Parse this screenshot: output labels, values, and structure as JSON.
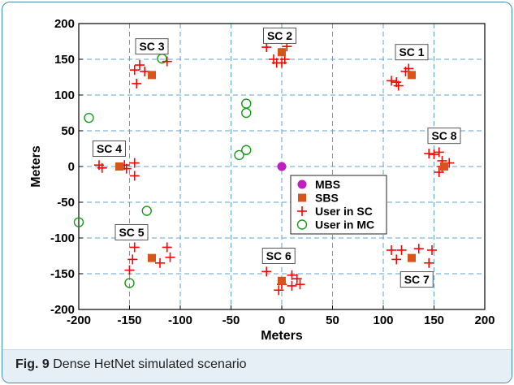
{
  "figure": {
    "label": "Fig. 9",
    "caption": "Dense HetNet simulated scenario"
  },
  "chart_data": {
    "type": "scatter",
    "xlabel": "Meters",
    "ylabel": "Meters",
    "xlim": [
      -200,
      200
    ],
    "ylim": [
      -200,
      200
    ],
    "xticks": [
      -200,
      -150,
      -100,
      -50,
      0,
      50,
      100,
      150,
      200
    ],
    "yticks": [
      -200,
      -150,
      -100,
      -50,
      0,
      50,
      100,
      150,
      200
    ],
    "grid": true,
    "legend_position": "center-right",
    "colors": {
      "MBS": "#bf1fbf",
      "SBS": "#d9541a",
      "User in SC": "#ff0000",
      "User in MC": "#1a9a1a",
      "grid": "#5fa0d0"
    },
    "series": [
      {
        "name": "MBS",
        "marker": "filled-circle",
        "points": [
          [
            0,
            0
          ]
        ]
      },
      {
        "name": "SBS",
        "marker": "filled-square",
        "points": [
          [
            -128,
            128
          ],
          [
            0,
            160
          ],
          [
            128,
            128
          ],
          [
            160,
            0
          ],
          [
            128,
            -128
          ],
          [
            0,
            -160
          ],
          [
            -128,
            -128
          ],
          [
            -160,
            0
          ]
        ]
      },
      {
        "name": "User in SC",
        "marker": "plus",
        "points": [
          [
            -145,
            135
          ],
          [
            -140,
            142
          ],
          [
            -135,
            133
          ],
          [
            -143,
            116
          ],
          [
            -113,
            147
          ],
          [
            -15,
            167
          ],
          [
            -8,
            150
          ],
          [
            -5,
            145
          ],
          [
            0,
            145
          ],
          [
            3,
            150
          ],
          [
            5,
            168
          ],
          [
            108,
            120
          ],
          [
            113,
            118
          ],
          [
            115,
            113
          ],
          [
            122,
            133
          ],
          [
            125,
            137
          ],
          [
            145,
            18
          ],
          [
            150,
            17
          ],
          [
            155,
            20
          ],
          [
            158,
            8
          ],
          [
            158,
            0
          ],
          [
            155,
            -8
          ],
          [
            165,
            5
          ],
          [
            -180,
            2
          ],
          [
            -177,
            -2
          ],
          [
            -155,
            2
          ],
          [
            -153,
            -3
          ],
          [
            -145,
            5
          ],
          [
            -145,
            -13
          ],
          [
            -145,
            -113
          ],
          [
            -147,
            -130
          ],
          [
            -150,
            -145
          ],
          [
            -120,
            -135
          ],
          [
            -113,
            -113
          ],
          [
            -110,
            -127
          ],
          [
            -15,
            -147
          ],
          [
            -3,
            -173
          ],
          [
            0,
            -165
          ],
          [
            10,
            -152
          ],
          [
            10,
            -167
          ],
          [
            15,
            -157
          ],
          [
            18,
            -165
          ],
          [
            108,
            -117
          ],
          [
            113,
            -130
          ],
          [
            118,
            -117
          ],
          [
            135,
            -115
          ],
          [
            145,
            -135
          ],
          [
            148,
            -117
          ]
        ]
      },
      {
        "name": "User in MC",
        "marker": "open-circle",
        "points": [
          [
            -190,
            68
          ],
          [
            -118,
            151
          ],
          [
            -35,
            88
          ],
          [
            -35,
            75
          ],
          [
            -42,
            16
          ],
          [
            -35,
            23
          ],
          [
            -200,
            -78
          ],
          [
            -133,
            -62
          ],
          [
            -150,
            -163
          ]
        ]
      }
    ],
    "annotations": [
      {
        "text": "SC 3",
        "x": -128,
        "y": 168
      },
      {
        "text": "SC 2",
        "x": -2,
        "y": 183
      },
      {
        "text": "SC 1",
        "x": 128,
        "y": 160
      },
      {
        "text": "SC 8",
        "x": 160,
        "y": 43
      },
      {
        "text": "SC 4",
        "x": -170,
        "y": 25
      },
      {
        "text": "SC 5",
        "x": -148,
        "y": -92
      },
      {
        "text": "SC 6",
        "x": -3,
        "y": -125
      },
      {
        "text": "SC 7",
        "x": 133,
        "y": -158
      }
    ]
  }
}
